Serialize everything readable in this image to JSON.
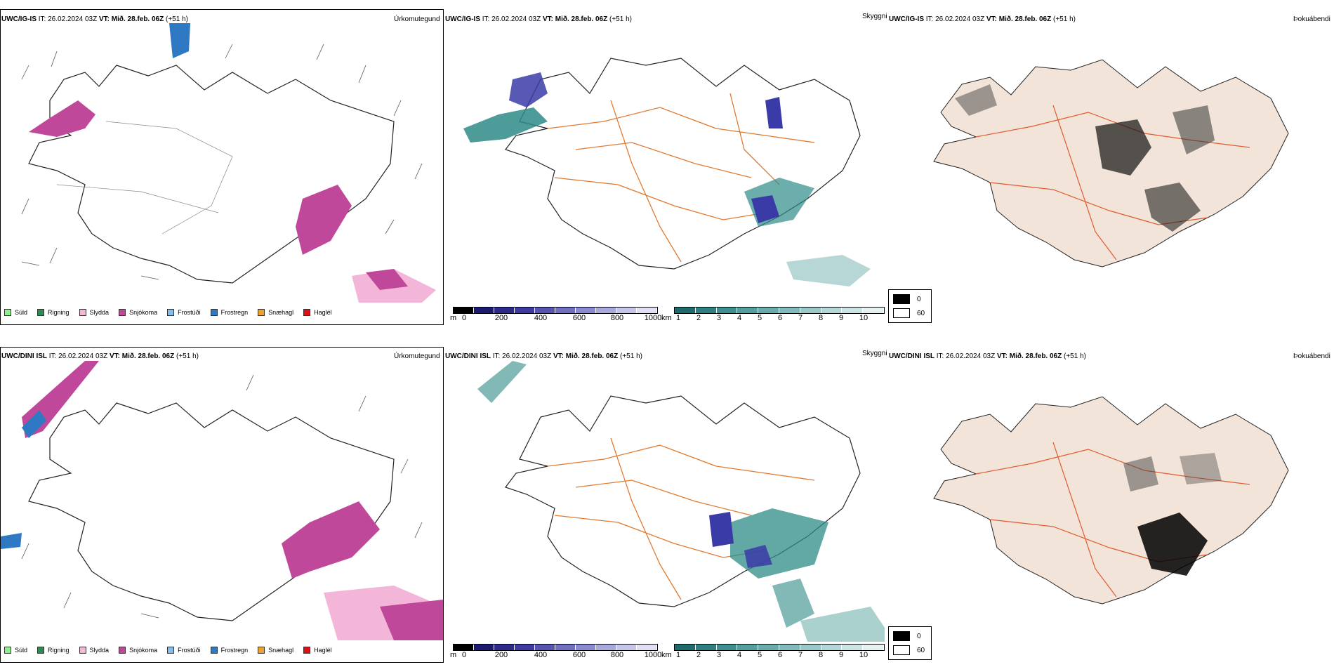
{
  "top": {
    "precip": {
      "model": "UWC/IG-IS",
      "it": "IT: 26.02.2024 03Z",
      "vt_label": "VT:",
      "vt": "Mið. 28.feb. 06Z",
      "lead": "(+51 h)",
      "title": "Úrkomutegund"
    },
    "vis": {
      "model": "UWC/IG-IS",
      "it": "IT: 26.02.2024 03Z",
      "vt_label": "VT:",
      "vt": "Mið. 28.feb. 06Z",
      "lead": "(+51 h)",
      "title": "Skyggni"
    },
    "fog": {
      "model": "UWC/IG-IS",
      "it": "IT: 26.02.2024 03Z",
      "vt_label": "VT:",
      "vt": "Mið. 28.feb. 06Z",
      "lead": "(+51 h)",
      "title": "Þokuábendi"
    }
  },
  "bottom": {
    "precip": {
      "model": "UWC/DINI ISL",
      "it": "IT: 26.02.2024 03Z",
      "vt_label": "VT:",
      "vt": "Mið. 28.feb. 06Z",
      "lead": "(+51 h)",
      "title": "Úrkomutegund"
    },
    "vis": {
      "model": "UWC/DINI ISL",
      "it": "IT: 26.02.2024 03Z",
      "vt_label": "VT:",
      "vt": "Mið. 28.feb. 06Z",
      "lead": "(+51 h)",
      "title": "Skyggni"
    },
    "fog": {
      "model": "UWC/DINI ISL",
      "it": "IT: 26.02.2024 03Z",
      "vt_label": "VT:",
      "vt": "Mið. 28.feb. 06Z",
      "lead": "(+51 h)",
      "title": "Þokuábendi"
    }
  },
  "precip_legend": [
    {
      "label": "Súld",
      "color": "#90ee90"
    },
    {
      "label": "Rigning",
      "color": "#2e8b57"
    },
    {
      "label": "Slydda",
      "color": "#f4b6d8"
    },
    {
      "label": "Snjókoma",
      "color": "#c0489a"
    },
    {
      "label": "Frostúði",
      "color": "#87bce8"
    },
    {
      "label": "Frostregn",
      "color": "#2f78c4"
    },
    {
      "label": "Snæhagl",
      "color": "#f0a030"
    },
    {
      "label": "Haglél",
      "color": "#e01010"
    }
  ],
  "ceiling_bar": {
    "unit": "m",
    "ticks": [
      "0",
      "200",
      "400",
      "600",
      "800",
      "1000"
    ],
    "colors": [
      "#000000",
      "#1a1a6e",
      "#2b2b8a",
      "#3c3ca0",
      "#5555b0",
      "#7070c0",
      "#8a8ad0",
      "#a8a8dc",
      "#c6c6e8",
      "#e0e0f2"
    ]
  },
  "vis_bar": {
    "unit": "km",
    "ticks": [
      "1",
      "2",
      "3",
      "4",
      "5",
      "6",
      "7",
      "8",
      "9",
      "10"
    ],
    "colors": [
      "#1e6b6b",
      "#2e7f7f",
      "#3d8f8f",
      "#559e9e",
      "#6aacac",
      "#82baba",
      "#9ac8c8",
      "#b4d6d6",
      "#cde4e4",
      "#e6f2f2"
    ]
  },
  "fog_legend": [
    {
      "value": "0",
      "color": "#000000"
    },
    {
      "value": "60",
      "color": "#ffffff"
    }
  ],
  "colors": {
    "land_fill": "#f2e4d8",
    "roads": "#e07a30",
    "snow": "#c0489a",
    "sleet": "#f4b6d8",
    "freezing_rain": "#2f78c4",
    "low_cloud": "#3b3ba8",
    "teal": "#2e8b87"
  }
}
